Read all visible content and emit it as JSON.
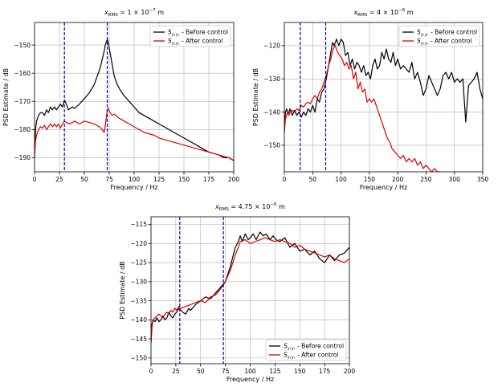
{
  "chart_data": [
    {
      "type": "line",
      "title": "x_RMS = 1 × 10⁻⁷ m",
      "title_main": "x",
      "title_sub": "RMS",
      "title_rest": " = 1 × 10",
      "title_exp": "−7",
      "title_unit": " m",
      "xlabel": "Frequency / Hz",
      "ylabel": "PSD Estimate / dB",
      "xlim": [
        0,
        200
      ],
      "ylim": [
        -195,
        -142
      ],
      "xticks": [
        0,
        25,
        50,
        75,
        100,
        125,
        150,
        175,
        200
      ],
      "yticks": [
        -190,
        -180,
        -170,
        -160,
        -150
      ],
      "grid": true,
      "legend_position": "top-right",
      "vlines": [
        {
          "x": 30,
          "color": "#0000cc"
        },
        {
          "x": 73,
          "color": "#0000cc"
        }
      ],
      "series": [
        {
          "name": "S_{y1y1} - Before control",
          "label_main": "S",
          "label_sub": "y₁y₁",
          "label_rest": " - Before control",
          "color": "#000000",
          "x": [
            0,
            1,
            2,
            4,
            6,
            8,
            10,
            12,
            14,
            16,
            18,
            20,
            22,
            24,
            26,
            28,
            30,
            32,
            34,
            36,
            38,
            40,
            45,
            50,
            55,
            60,
            63,
            66,
            68,
            70,
            71,
            72,
            73,
            74,
            75,
            76,
            78,
            80,
            83,
            86,
            90,
            95,
            100,
            105,
            110,
            115,
            120,
            125,
            130,
            135,
            140,
            145,
            150,
            155,
            160,
            165,
            170,
            175,
            180,
            185,
            190,
            195,
            200
          ],
          "y": [
            -190,
            -180,
            -177,
            -175,
            -174,
            -174,
            -175,
            -173,
            -174,
            -172,
            -173,
            -172,
            -173,
            -172,
            -171,
            -172,
            -169.5,
            -171,
            -173,
            -172.5,
            -172,
            -172.5,
            -171,
            -169,
            -167,
            -164,
            -161,
            -158,
            -155,
            -152,
            -150,
            -149,
            -148,
            -149,
            -151,
            -153,
            -157,
            -161,
            -164,
            -166,
            -168,
            -170,
            -172,
            -174,
            -175,
            -176,
            -177,
            -178,
            -179,
            -180,
            -181,
            -182,
            -183,
            -184,
            -185,
            -186,
            -187,
            -188,
            -188.5,
            -189,
            -190,
            -190,
            -191
          ]
        },
        {
          "name": "S_{y1y1} - After control",
          "label_main": "S",
          "label_sub": "y₁y₁",
          "label_rest": " - After control",
          "color": "#dd0000",
          "x": [
            0,
            1,
            2,
            4,
            6,
            8,
            10,
            12,
            14,
            16,
            18,
            20,
            22,
            24,
            26,
            28,
            30,
            32,
            35,
            38,
            40,
            45,
            50,
            55,
            60,
            65,
            68,
            70,
            72,
            73,
            74,
            75,
            78,
            80,
            85,
            90,
            95,
            100,
            105,
            110,
            115,
            120,
            125,
            130,
            135,
            140,
            145,
            150,
            155,
            160,
            165,
            170,
            175,
            180,
            185,
            190,
            195,
            200
          ],
          "y": [
            -190,
            -184,
            -182,
            -180,
            -179,
            -179.5,
            -178.5,
            -180,
            -179,
            -178,
            -179,
            -178,
            -179,
            -178,
            -179.5,
            -178,
            -177,
            -177.5,
            -178,
            -177.5,
            -177,
            -178,
            -177,
            -177.5,
            -178,
            -179,
            -180,
            -181,
            -176,
            -173,
            -172.5,
            -173.5,
            -175,
            -174.5,
            -176,
            -177,
            -178,
            -179,
            -180,
            -181,
            -181.5,
            -182,
            -183,
            -183.5,
            -184,
            -184.5,
            -185,
            -185.5,
            -186,
            -186.5,
            -187,
            -187.5,
            -188,
            -188.5,
            -189,
            -189.5,
            -190,
            -191
          ]
        }
      ]
    },
    {
      "type": "line",
      "title": "x_RMS = 4 × 10⁻⁶ m",
      "title_main": "x",
      "title_sub": "RMS",
      "title_rest": " = 4 × 10",
      "title_exp": "−6",
      "title_unit": " m",
      "xlabel": "Frequency / Hz",
      "ylabel": "PSD Estimate / dB",
      "xlim": [
        0,
        350
      ],
      "ylim": [
        -158,
        -113
      ],
      "xticks": [
        0,
        50,
        100,
        150,
        200,
        250,
        300,
        350
      ],
      "yticks": [
        -150,
        -140,
        -130,
        -120
      ],
      "grid": true,
      "legend_position": "top-right",
      "vlines": [
        {
          "x": 28,
          "color": "#0000cc"
        },
        {
          "x": 73,
          "color": "#0000cc"
        }
      ],
      "series": [
        {
          "name": "S_{y1y1} - Before control",
          "label_main": "S",
          "label_sub": "y₁y₁",
          "label_rest": " - Before control",
          "color": "#000000",
          "x": [
            0,
            2,
            4,
            6,
            8,
            10,
            14,
            18,
            22,
            26,
            30,
            34,
            38,
            42,
            46,
            50,
            54,
            58,
            62,
            66,
            70,
            74,
            78,
            82,
            85,
            88,
            92,
            96,
            100,
            104,
            108,
            112,
            116,
            120,
            124,
            128,
            132,
            136,
            140,
            144,
            148,
            152,
            156,
            160,
            164,
            168,
            172,
            176,
            180,
            184,
            188,
            192,
            196,
            200,
            205,
            210,
            215,
            220,
            225,
            230,
            235,
            240,
            245,
            250,
            255,
            260,
            265,
            270,
            275,
            280,
            285,
            290,
            295,
            300,
            305,
            310,
            315,
            320,
            325,
            330,
            335,
            340,
            345,
            350
          ],
          "y": [
            -146,
            -140,
            -139,
            -140.5,
            -140,
            -139,
            -141,
            -139.5,
            -141,
            -140,
            -141.5,
            -140,
            -141,
            -139,
            -140,
            -138,
            -140,
            -136,
            -137,
            -134,
            -133,
            -130,
            -126,
            -122,
            -119,
            -120,
            -118,
            -120,
            -118,
            -119,
            -123,
            -122,
            -126,
            -124,
            -127,
            -125,
            -126,
            -128,
            -126,
            -129,
            -128,
            -130,
            -126,
            -124,
            -127,
            -126,
            -122,
            -124,
            -121,
            -124,
            -125,
            -122,
            -126,
            -124,
            -127,
            -126,
            -127,
            -128,
            -125,
            -130,
            -128,
            -131,
            -135,
            -133,
            -129,
            -131,
            -133,
            -135,
            -133,
            -129,
            -128,
            -130,
            -128,
            -131,
            -130,
            -131,
            -130,
            -143,
            -132,
            -131,
            -130,
            -128,
            -133,
            -136
          ]
        },
        {
          "name": "S_{y1y1} - After control",
          "label_main": "S",
          "label_sub": "y₁y₁",
          "label_rest": " - After control",
          "color": "#dd0000",
          "x": [
            0,
            2,
            4,
            6,
            8,
            10,
            14,
            18,
            22,
            26,
            30,
            34,
            38,
            42,
            46,
            50,
            54,
            58,
            62,
            66,
            70,
            74,
            78,
            82,
            86,
            90,
            94,
            98,
            102,
            106,
            110,
            114,
            118,
            122,
            126,
            130,
            134,
            138,
            142,
            146,
            150,
            154,
            158,
            162,
            166,
            170,
            174,
            178,
            182,
            186,
            190,
            195,
            200,
            205,
            210,
            215,
            220,
            225,
            230,
            235,
            240,
            245,
            250,
            255,
            260,
            265,
            270,
            275
          ],
          "y": [
            -146,
            -142,
            -141,
            -140,
            -141,
            -140,
            -139.5,
            -140,
            -139,
            -139.5,
            -138,
            -138.5,
            -137.5,
            -137,
            -137.5,
            -136,
            -135,
            -136,
            -134,
            -133,
            -131,
            -129,
            -126,
            -124,
            -121,
            -120,
            -122,
            -123,
            -124,
            -126,
            -125,
            -127,
            -126,
            -130,
            -128,
            -133,
            -131,
            -134,
            -133,
            -137,
            -136,
            -137,
            -136,
            -138,
            -140,
            -142,
            -144,
            -146,
            -148,
            -149,
            -151,
            -152,
            -153,
            -154,
            -153,
            -155,
            -154,
            -155,
            -154,
            -156,
            -155,
            -157,
            -156,
            -157,
            -158,
            -157,
            -158,
            -158
          ]
        }
      ]
    },
    {
      "type": "line",
      "title": "x_RMS = 4.75 × 10⁻⁶ m",
      "title_main": "x",
      "title_sub": "RMS",
      "title_rest": " = 4.75 × 10",
      "title_exp": "−6",
      "title_unit": " m",
      "xlabel": "Frequency / Hz",
      "ylabel": "PSD Estimate / dB",
      "xlim": [
        0,
        200
      ],
      "ylim": [
        -151.5,
        -113
      ],
      "xticks": [
        0,
        25,
        50,
        75,
        100,
        125,
        150,
        175,
        200
      ],
      "yticks": [
        -150,
        -145,
        -140,
        -135,
        -130,
        -125,
        -120,
        -115
      ],
      "grid": true,
      "legend_position": "bottom-right",
      "vlines": [
        {
          "x": 29,
          "color": "#0000cc"
        },
        {
          "x": 73,
          "color": "#0000cc"
        }
      ],
      "series": [
        {
          "name": "S_{y1y1} - Before control",
          "label_main": "S",
          "label_sub": "y₁y₁",
          "label_rest": " - Before control",
          "color": "#000000",
          "x": [
            0,
            1,
            2,
            4,
            6,
            8,
            10,
            12,
            14,
            16,
            18,
            20,
            22,
            24,
            26,
            28,
            30,
            32,
            35,
            38,
            40,
            45,
            50,
            55,
            60,
            65,
            70,
            75,
            80,
            85,
            88,
            90,
            92,
            95,
            98,
            100,
            103,
            106,
            110,
            113,
            116,
            120,
            123,
            126,
            130,
            135,
            140,
            145,
            150,
            155,
            160,
            165,
            170,
            175,
            180,
            185,
            190,
            195,
            200
          ],
          "y": [
            -146,
            -141,
            -140,
            -140.5,
            -139.5,
            -140.5,
            -140,
            -139,
            -140,
            -139.5,
            -138,
            -139,
            -139.5,
            -138.5,
            -138,
            -137,
            -137.5,
            -138,
            -138.5,
            -137,
            -137.5,
            -136,
            -135,
            -134,
            -134.5,
            -133,
            -131.5,
            -130,
            -126,
            -121,
            -119.5,
            -118,
            -119.5,
            -117.5,
            -119,
            -118.5,
            -117.5,
            -119,
            -117,
            -118,
            -117.5,
            -119,
            -118,
            -119,
            -119.5,
            -118.5,
            -121,
            -120,
            -122,
            -121.5,
            -123,
            -122,
            -124,
            -125,
            -123,
            -124.5,
            -123,
            -122.5,
            -121
          ]
        },
        {
          "name": "S_{y1y1} - After control",
          "label_main": "S",
          "label_sub": "y₁y₁",
          "label_rest": " - After control",
          "color": "#dd0000",
          "x": [
            0,
            1,
            2,
            4,
            6,
            8,
            10,
            12,
            14,
            16,
            18,
            20,
            22,
            24,
            26,
            28,
            30,
            35,
            40,
            45,
            50,
            55,
            60,
            65,
            70,
            75,
            80,
            85,
            88,
            90,
            95,
            100,
            105,
            110,
            115,
            120,
            125,
            130,
            135,
            140,
            145,
            150,
            155,
            160,
            165,
            170,
            175,
            180,
            185,
            190,
            195,
            200
          ],
          "y": [
            -146,
            -142,
            -140,
            -139.5,
            -139,
            -138.5,
            -139,
            -139.5,
            -138.5,
            -138,
            -138.5,
            -137.5,
            -138,
            -137,
            -137.5,
            -136.5,
            -137,
            -136.5,
            -136,
            -135.5,
            -135,
            -135.5,
            -134,
            -133.5,
            -132,
            -130,
            -127,
            -123,
            -121,
            -119.5,
            -119,
            -120,
            -119.5,
            -119,
            -118.5,
            -119,
            -119.5,
            -119,
            -119.5,
            -120,
            -121,
            -120.5,
            -121.5,
            -122,
            -122.5,
            -123,
            -123.5,
            -123,
            -124,
            -124.5,
            -125,
            -124
          ]
        }
      ]
    }
  ]
}
